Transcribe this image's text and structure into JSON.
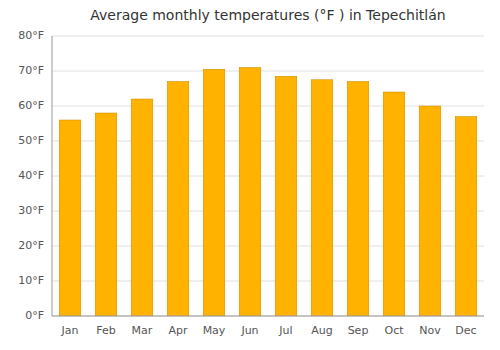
{
  "chart_data": {
    "type": "bar",
    "title": "Average monthly temperatures (°F ) in Tepechitlán",
    "categories": [
      "Jan",
      "Feb",
      "Mar",
      "Apr",
      "May",
      "Jun",
      "Jul",
      "Aug",
      "Sep",
      "Oct",
      "Nov",
      "Dec"
    ],
    "values": [
      56,
      58,
      62,
      67,
      70.5,
      71,
      68.5,
      67.5,
      67,
      64,
      60,
      57
    ],
    "color": "#FFB300",
    "ylim": [
      0,
      80
    ],
    "yticks": [
      {
        "value": 0,
        "label": "0°F"
      },
      {
        "value": 10,
        "label": "10°F"
      },
      {
        "value": 20,
        "label": "20°F"
      },
      {
        "value": 30,
        "label": "30°F"
      },
      {
        "value": 40,
        "label": "40°F"
      },
      {
        "value": 50,
        "label": "50°F"
      },
      {
        "value": 60,
        "label": "60°F"
      },
      {
        "value": 70,
        "label": "70°F"
      },
      {
        "value": 80,
        "label": "80°F"
      }
    ],
    "grid": true
  }
}
